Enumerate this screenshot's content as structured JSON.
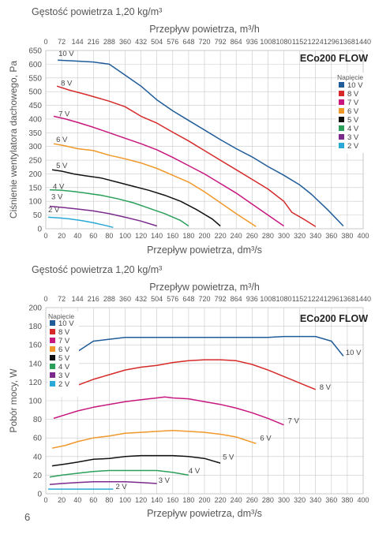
{
  "page": {
    "number": "6"
  },
  "colors": {
    "10 V": "#1f5c99",
    "8 V": "#d62a2a",
    "7 V": "#c8177e",
    "6 V": "#f0982a",
    "5 V": "#111111",
    "4 V": "#2aa05a",
    "3 V": "#7b2b8c",
    "2 V": "#29a9d8",
    "grid": "#c9c9c9",
    "panel": "#ffffff"
  },
  "chart_data": [
    {
      "type": "line",
      "density_label": "Gęstość powietrza 1,20 kg/m³",
      "title": "ECo200 FLOW",
      "xlabel": "Przepływ powietrza, dm³/s",
      "x2label": "Przepływ powietrza, m³/h",
      "ylabel": "Ciśnienie wentylatora dachowego, Pa",
      "xlim": [
        0,
        400
      ],
      "ylim": [
        0,
        650
      ],
      "xticks": [
        "0",
        "20",
        "40",
        "60",
        "80",
        "100",
        "120",
        "140",
        "160",
        "180",
        "200",
        "220",
        "240",
        "260",
        "280",
        "300",
        "320",
        "340",
        "360",
        "380",
        "400"
      ],
      "x2ticks": [
        "0",
        "72",
        "144",
        "216",
        "288",
        "360",
        "432",
        "504",
        "576",
        "648",
        "720",
        "792",
        "864",
        "936",
        "1008",
        "1080",
        "1152",
        "1224",
        "1296",
        "1368",
        "1440"
      ],
      "yticks": [
        "0",
        "50",
        "100",
        "150",
        "200",
        "250",
        "300",
        "350",
        "400",
        "450",
        "500",
        "550",
        "600",
        "650"
      ],
      "grid": true,
      "legend_title": "Napięcie",
      "legend_position": "right",
      "series": [
        {
          "name": "10 V",
          "label_at": [
            16,
            630
          ],
          "x": [
            15,
            35,
            60,
            80,
            100,
            120,
            140,
            160,
            180,
            200,
            220,
            240,
            260,
            280,
            300,
            320,
            335,
            355,
            375
          ],
          "y": [
            615,
            612,
            608,
            600,
            560,
            520,
            470,
            430,
            395,
            360,
            325,
            292,
            262,
            227,
            195,
            160,
            125,
            70,
            10
          ]
        },
        {
          "name": "8 V",
          "label_at": [
            19,
            522
          ],
          "x": [
            14,
            30,
            50,
            80,
            100,
            120,
            140,
            160,
            180,
            200,
            220,
            240,
            260,
            280,
            300,
            310,
            325,
            340
          ],
          "y": [
            520,
            505,
            490,
            465,
            445,
            410,
            385,
            352,
            320,
            285,
            250,
            215,
            180,
            145,
            100,
            60,
            35,
            8
          ]
        },
        {
          "name": "7 V",
          "label_at": [
            16,
            410
          ],
          "x": [
            10,
            25,
            40,
            60,
            80,
            100,
            120,
            140,
            160,
            180,
            200,
            220,
            240,
            260,
            280,
            300
          ],
          "y": [
            410,
            400,
            388,
            370,
            350,
            330,
            310,
            288,
            260,
            230,
            200,
            165,
            130,
            90,
            50,
            10
          ]
        },
        {
          "name": "6 V",
          "label_at": [
            13,
            316
          ],
          "x": [
            10,
            25,
            40,
            60,
            80,
            100,
            120,
            140,
            160,
            180,
            200,
            220,
            240,
            265
          ],
          "y": [
            310,
            302,
            292,
            285,
            268,
            255,
            240,
            220,
            195,
            170,
            135,
            95,
            55,
            8
          ]
        },
        {
          "name": "5 V",
          "label_at": [
            13,
            221
          ],
          "x": [
            8,
            20,
            35,
            50,
            70,
            90,
            110,
            130,
            150,
            170,
            190,
            210,
            220
          ],
          "y": [
            215,
            210,
            200,
            193,
            185,
            170,
            155,
            140,
            122,
            100,
            70,
            35,
            10
          ]
        },
        {
          "name": "4 V",
          "label_at": [
            9,
            145
          ],
          "x": [
            5,
            20,
            35,
            50,
            70,
            90,
            110,
            130,
            150,
            170,
            180
          ],
          "y": [
            142,
            140,
            136,
            130,
            122,
            110,
            95,
            75,
            55,
            30,
            10
          ]
        },
        {
          "name": "3 V",
          "label_at": [
            7,
            108
          ],
          "x": [
            5,
            20,
            40,
            60,
            80,
            100,
            120,
            140
          ],
          "y": [
            82,
            78,
            72,
            65,
            55,
            42,
            28,
            10
          ]
        },
        {
          "name": "2 V",
          "label_at": [
            3,
            61
          ],
          "x": [
            3,
            15,
            30,
            45,
            60,
            75,
            85
          ],
          "y": [
            42,
            40,
            36,
            30,
            22,
            12,
            5
          ]
        }
      ]
    },
    {
      "type": "line",
      "density_label": "Gęstość powietrza 1,20 kg/m³",
      "title": "ECo200 FLOW",
      "xlabel": "Przepływ powietrza, dm³/s",
      "x2label": "Przepływ powietrza, m³/h",
      "ylabel": "Pobór mocy, W",
      "xlim": [
        0,
        400
      ],
      "ylim": [
        0,
        200
      ],
      "xticks": [
        "0",
        "20",
        "40",
        "60",
        "80",
        "100",
        "120",
        "140",
        "160",
        "180",
        "200",
        "220",
        "240",
        "260",
        "280",
        "300",
        "320",
        "340",
        "360",
        "380",
        "400"
      ],
      "x2ticks": [
        "0",
        "72",
        "144",
        "216",
        "288",
        "360",
        "432",
        "504",
        "576",
        "648",
        "720",
        "792",
        "864",
        "936",
        "1008",
        "1080",
        "1152",
        "1224",
        "1296",
        "1368",
        "1440"
      ],
      "yticks": [
        "0",
        "20",
        "40",
        "60",
        "80",
        "100",
        "120",
        "140",
        "160",
        "180",
        "200"
      ],
      "grid": true,
      "legend_title": "Napięcie",
      "legend_position": "top-left",
      "series": [
        {
          "name": "10 V",
          "label_at": [
            378,
            149
          ],
          "x": [
            15,
            35,
            60,
            80,
            100,
            120,
            140,
            160,
            180,
            200,
            220,
            240,
            260,
            280,
            300,
            320,
            340,
            360,
            375
          ],
          "y": [
            133,
            150,
            164,
            166,
            168,
            168,
            168,
            168,
            168,
            168,
            168,
            168,
            168,
            168,
            169,
            169,
            169,
            164,
            148
          ]
        },
        {
          "name": "8 V",
          "label_at": [
            345,
            112
          ],
          "x": [
            15,
            35,
            60,
            80,
            100,
            120,
            140,
            160,
            180,
            200,
            220,
            240,
            260,
            280,
            300,
            320,
            340
          ],
          "y": [
            106,
            115,
            123,
            128,
            133,
            136,
            138,
            141,
            143,
            144,
            144,
            143,
            139,
            133,
            126,
            119,
            112
          ]
        },
        {
          "name": "7 V",
          "label_at": [
            305,
            76
          ],
          "x": [
            10,
            25,
            40,
            60,
            80,
            100,
            120,
            140,
            150,
            160,
            180,
            200,
            220,
            240,
            260,
            280,
            300
          ],
          "y": [
            81,
            85,
            89,
            93,
            96,
            99,
            101,
            103,
            104,
            103,
            102,
            99,
            96,
            92,
            87,
            81,
            74
          ]
        },
        {
          "name": "6 V",
          "label_at": [
            270,
            57
          ],
          "x": [
            8,
            25,
            40,
            60,
            80,
            100,
            120,
            140,
            160,
            180,
            200,
            220,
            240,
            265
          ],
          "y": [
            49,
            52,
            56,
            60,
            62,
            65,
            66,
            67,
            68,
            67,
            66,
            64,
            61,
            54
          ]
        },
        {
          "name": "5 V",
          "label_at": [
            223,
            37
          ],
          "x": [
            8,
            25,
            40,
            60,
            80,
            100,
            120,
            140,
            160,
            180,
            200,
            220
          ],
          "y": [
            30,
            32,
            34,
            37,
            38,
            40,
            41,
            41,
            41,
            40,
            38,
            33
          ]
        },
        {
          "name": "4 V",
          "label_at": [
            180,
            22
          ],
          "x": [
            5,
            20,
            40,
            60,
            80,
            100,
            120,
            140,
            160,
            180
          ],
          "y": [
            18,
            20,
            22,
            24,
            25,
            25,
            25,
            25,
            23,
            20
          ]
        },
        {
          "name": "3 V",
          "label_at": [
            142,
            12
          ],
          "x": [
            5,
            20,
            40,
            60,
            80,
            100,
            120,
            140
          ],
          "y": [
            10,
            11,
            12,
            13,
            13,
            13,
            12,
            11
          ]
        },
        {
          "name": "2 V",
          "label_at": [
            88,
            5
          ],
          "x": [
            3,
            20,
            40,
            60,
            85
          ],
          "y": [
            5,
            5,
            5,
            5,
            5
          ]
        }
      ]
    }
  ]
}
